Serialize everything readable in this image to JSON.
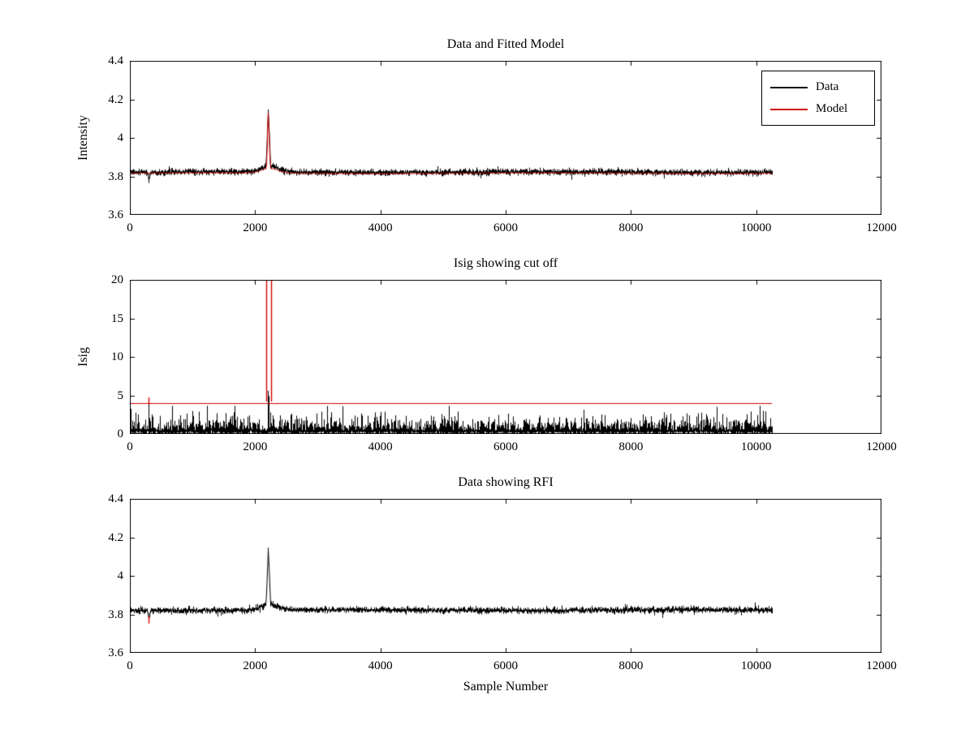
{
  "figure": {
    "background": "#ffffff",
    "axis_color": "#000000"
  },
  "chart_data": [
    {
      "type": "line",
      "title": "Data and Fitted Model",
      "xlabel": "",
      "ylabel": "Intensity",
      "xlim": [
        0,
        12000
      ],
      "ylim": [
        3.6,
        4.4
      ],
      "xticks": [
        0,
        2000,
        4000,
        6000,
        8000,
        10000,
        12000
      ],
      "yticks": [
        3.6,
        3.8,
        4,
        4.2,
        4.4
      ],
      "grid": false,
      "legend": {
        "position": "top-right",
        "entries": [
          {
            "label": "Data",
            "color": "#000000"
          },
          {
            "label": "Model",
            "color": "#d40000"
          }
        ]
      },
      "series": [
        {
          "name": "Data",
          "color": "#000000",
          "kind": "noisy-line",
          "baseline": 3.822,
          "noise_std": 0.0085,
          "x_start": 0,
          "x_end": 10250,
          "features": {
            "rfi_spike": {
              "x": 2205,
              "peak": 4.155,
              "half_width": 35
            },
            "shoulder_bump": {
              "x": 2230,
              "height": 0.03,
              "sigma": 140
            },
            "dip": {
              "x": 300,
              "depth": 0.045,
              "sigma": 10
            }
          }
        },
        {
          "name": "Model",
          "color": "#d40000",
          "kind": "smooth-line",
          "baseline": 3.8165,
          "x_start": 0,
          "x_end": 10250,
          "features": {
            "rfi_spike": {
              "x": 2205,
              "peak": 4.15,
              "half_width": 30
            },
            "shoulder_bump": {
              "x": 2230,
              "height": 0.024,
              "sigma": 140
            }
          }
        }
      ]
    },
    {
      "type": "line",
      "title": "Isig showing cut off",
      "xlabel": "",
      "ylabel": "Isig",
      "xlim": [
        0,
        12000
      ],
      "ylim": [
        0,
        20
      ],
      "xticks": [
        0,
        2000,
        4000,
        6000,
        8000,
        10000,
        12000
      ],
      "yticks": [
        0,
        5,
        10,
        15,
        20
      ],
      "grid": false,
      "series": [
        {
          "name": "Isig",
          "color": "#000000",
          "kind": "noisy-band",
          "band_low": 0,
          "band_high": 3.5,
          "typical": 1.0,
          "x_start": 0,
          "x_end": 10250,
          "spikes": [
            {
              "x": 300,
              "peak": 4.5
            },
            {
              "x": 2205,
              "peak": 5.6
            },
            {
              "x": 2218,
              "peak": 4.9
            }
          ]
        },
        {
          "name": "Cutoff threshold",
          "color": "#d40000",
          "kind": "hline",
          "y": 4,
          "x_start": 0,
          "x_end": 10250
        },
        {
          "name": "Flagged RFI",
          "color": "#d40000",
          "kind": "vlines",
          "lines": [
            {
              "x": 2180,
              "y0": 4.2,
              "y1": 20
            },
            {
              "x": 2250,
              "y0": 4.2,
              "y1": 20
            },
            {
              "x": 300,
              "y0": 4.0,
              "y1": 4.75
            }
          ]
        }
      ]
    },
    {
      "type": "line",
      "title": "Data showing RFI",
      "xlabel": "Sample Number",
      "ylabel": "",
      "xlim": [
        0,
        12000
      ],
      "ylim": [
        3.6,
        4.4
      ],
      "xticks": [
        0,
        2000,
        4000,
        6000,
        8000,
        10000,
        12000
      ],
      "yticks": [
        3.6,
        3.8,
        4,
        4.2,
        4.4
      ],
      "grid": false,
      "series": [
        {
          "name": "Data",
          "color": "#000000",
          "kind": "noisy-line",
          "baseline": 3.822,
          "noise_std": 0.0085,
          "x_start": 0,
          "x_end": 10250,
          "features": {
            "rfi_spike": {
              "x": 2205,
              "peak": 4.15,
              "half_width": 35
            },
            "shoulder_bump": {
              "x": 2230,
              "height": 0.03,
              "sigma": 140
            },
            "dip": {
              "x": 300,
              "depth": 0.045,
              "sigma": 10
            }
          }
        },
        {
          "name": "RFI marker",
          "color": "#d40000",
          "kind": "vlines",
          "lines": [
            {
              "x": 300,
              "y0": 3.753,
              "y1": 3.792
            }
          ]
        }
      ]
    }
  ]
}
